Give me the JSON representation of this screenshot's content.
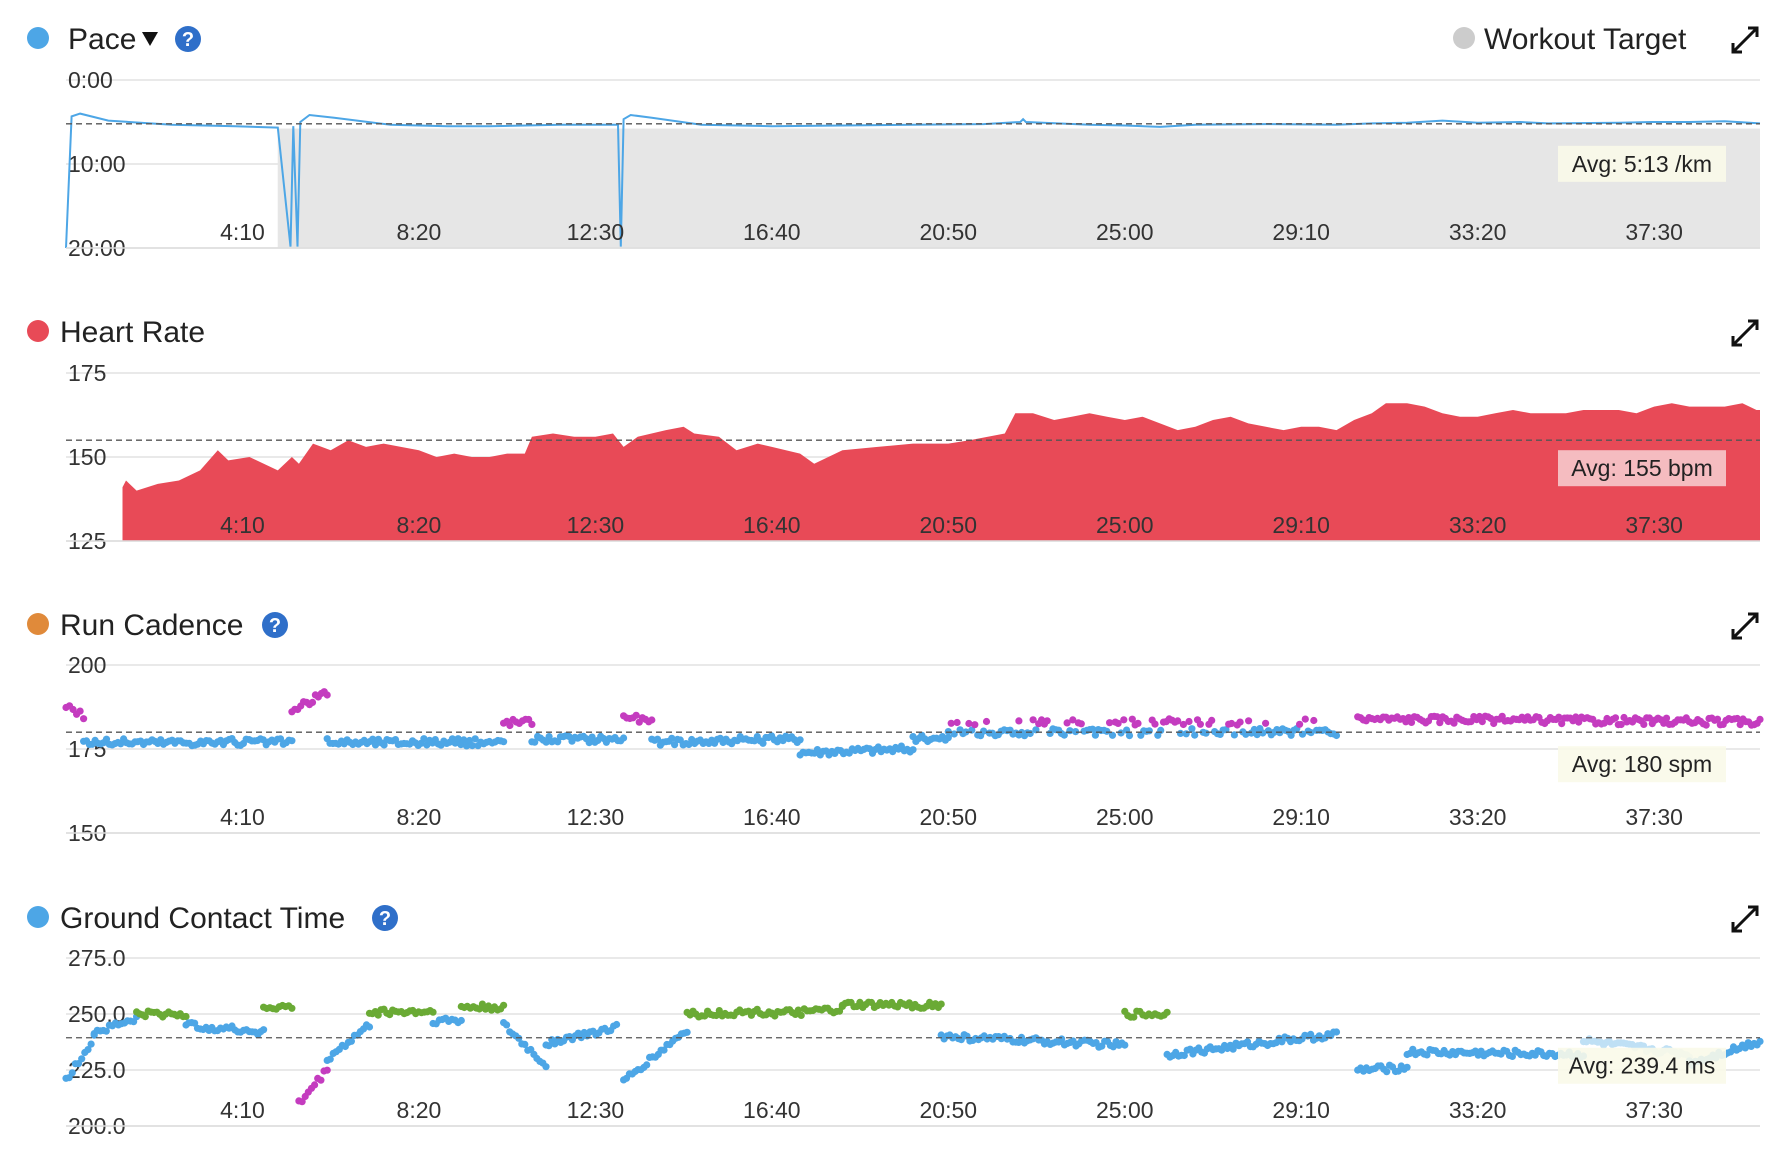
{
  "colors": {
    "pace": "#4da6e6",
    "heart_rate": "#e84a57",
    "cadence_dot": "#e08a3a",
    "cadence_blue": "#4da6e6",
    "cadence_purple": "#c43cbf",
    "gct": "#4da6e6",
    "gct_green": "#6aaa35",
    "gct_purple": "#c43cbf",
    "gct_light": "#bfe0f5",
    "target_gray": "#cccccc",
    "help_blue": "#2f6fc9",
    "hr_avg_bg": "#f6c9cc",
    "avg_bg": "#fafae9"
  },
  "icons": {
    "help": "question-circle-icon",
    "expand": "expand-arrows-icon",
    "dropdown": "caret-down-icon"
  },
  "chart_data": [
    {
      "id": "pace",
      "type": "line",
      "title": "Pace",
      "legend": "Workout Target",
      "legend_placement": "top-right",
      "x_ticks": [
        "4:10",
        "8:20",
        "12:30",
        "16:40",
        "20:50",
        "25:00",
        "29:10",
        "33:20",
        "37:30"
      ],
      "x_tick_seconds": [
        250,
        500,
        750,
        1000,
        1250,
        1500,
        1750,
        2000,
        2250
      ],
      "xlim": [
        0,
        2400
      ],
      "y_ticks": [
        "0:00",
        "10:00",
        "20:00"
      ],
      "y_tick_values": [
        0,
        600,
        1200
      ],
      "ylim": [
        0,
        1200
      ],
      "y_inverted": true,
      "grid": true,
      "avg_value": 313,
      "avg_label": "Avg: 5:13 /km",
      "target_band": {
        "x_start": 300,
        "x_end": 2400,
        "y_start": 347,
        "y_end": 1200
      },
      "points": [
        [
          0,
          1200
        ],
        [
          8,
          260
        ],
        [
          20,
          240
        ],
        [
          60,
          290
        ],
        [
          150,
          320
        ],
        [
          240,
          330
        ],
        [
          300,
          340
        ],
        [
          318,
          1190
        ],
        [
          322,
          330
        ],
        [
          328,
          1190
        ],
        [
          332,
          300
        ],
        [
          345,
          250
        ],
        [
          380,
          270
        ],
        [
          460,
          320
        ],
        [
          540,
          330
        ],
        [
          600,
          330
        ],
        [
          700,
          320
        ],
        [
          782,
          320
        ],
        [
          786,
          1190
        ],
        [
          790,
          280
        ],
        [
          800,
          250
        ],
        [
          830,
          270
        ],
        [
          900,
          320
        ],
        [
          1000,
          330
        ],
        [
          1100,
          325
        ],
        [
          1200,
          320
        ],
        [
          1300,
          315
        ],
        [
          1352,
          300
        ],
        [
          1356,
          280
        ],
        [
          1360,
          300
        ],
        [
          1450,
          320
        ],
        [
          1500,
          325
        ],
        [
          1550,
          335
        ],
        [
          1600,
          320
        ],
        [
          1700,
          315
        ],
        [
          1800,
          320
        ],
        [
          1850,
          310
        ],
        [
          1900,
          305
        ],
        [
          1950,
          290
        ],
        [
          2000,
          305
        ],
        [
          2060,
          300
        ],
        [
          2100,
          310
        ],
        [
          2200,
          305
        ],
        [
          2250,
          300
        ],
        [
          2300,
          300
        ],
        [
          2350,
          295
        ],
        [
          2400,
          310
        ]
      ]
    },
    {
      "id": "heart_rate",
      "type": "area",
      "title": "Heart Rate",
      "x_ticks": [
        "4:10",
        "8:20",
        "12:30",
        "16:40",
        "20:50",
        "25:00",
        "29:10",
        "33:20",
        "37:30"
      ],
      "x_tick_seconds": [
        250,
        500,
        750,
        1000,
        1250,
        1500,
        1750,
        2000,
        2250
      ],
      "xlim": [
        0,
        2400
      ],
      "y_ticks": [
        "175",
        "150",
        "125"
      ],
      "y_tick_values": [
        175,
        150,
        125
      ],
      "ylim": [
        125,
        175
      ],
      "grid": true,
      "avg_value": 155,
      "avg_label": "Avg: 155 bpm",
      "points": [
        [
          80,
          125
        ],
        [
          80,
          141
        ],
        [
          85,
          143
        ],
        [
          100,
          140
        ],
        [
          130,
          142
        ],
        [
          160,
          143
        ],
        [
          190,
          146
        ],
        [
          215,
          152
        ],
        [
          230,
          149
        ],
        [
          260,
          150
        ],
        [
          300,
          146
        ],
        [
          320,
          150
        ],
        [
          330,
          148
        ],
        [
          350,
          154
        ],
        [
          375,
          152
        ],
        [
          400,
          155
        ],
        [
          425,
          153
        ],
        [
          450,
          154
        ],
        [
          500,
          152
        ],
        [
          525,
          150
        ],
        [
          550,
          151
        ],
        [
          575,
          150
        ],
        [
          600,
          150
        ],
        [
          625,
          151
        ],
        [
          650,
          151
        ],
        [
          660,
          156
        ],
        [
          690,
          157
        ],
        [
          720,
          156
        ],
        [
          750,
          156
        ],
        [
          775,
          157
        ],
        [
          790,
          153
        ],
        [
          810,
          156
        ],
        [
          850,
          158
        ],
        [
          875,
          159
        ],
        [
          890,
          157
        ],
        [
          925,
          156
        ],
        [
          950,
          152
        ],
        [
          980,
          154
        ],
        [
          1000,
          153
        ],
        [
          1020,
          152
        ],
        [
          1040,
          151
        ],
        [
          1060,
          148
        ],
        [
          1080,
          150
        ],
        [
          1100,
          152
        ],
        [
          1150,
          153
        ],
        [
          1200,
          154
        ],
        [
          1250,
          154
        ],
        [
          1280,
          155
        ],
        [
          1330,
          157
        ],
        [
          1345,
          163
        ],
        [
          1370,
          163
        ],
        [
          1400,
          161
        ],
        [
          1425,
          162
        ],
        [
          1450,
          163
        ],
        [
          1475,
          162
        ],
        [
          1500,
          161
        ],
        [
          1525,
          162
        ],
        [
          1550,
          160
        ],
        [
          1575,
          158
        ],
        [
          1600,
          159
        ],
        [
          1625,
          161
        ],
        [
          1650,
          162
        ],
        [
          1675,
          160
        ],
        [
          1700,
          159
        ],
        [
          1725,
          158
        ],
        [
          1750,
          159
        ],
        [
          1775,
          159
        ],
        [
          1800,
          158
        ],
        [
          1825,
          161
        ],
        [
          1850,
          163
        ],
        [
          1870,
          166
        ],
        [
          1900,
          166
        ],
        [
          1925,
          165
        ],
        [
          1950,
          163
        ],
        [
          1975,
          162
        ],
        [
          2000,
          162
        ],
        [
          2025,
          163
        ],
        [
          2050,
          164
        ],
        [
          2075,
          163
        ],
        [
          2100,
          163
        ],
        [
          2125,
          163
        ],
        [
          2150,
          164
        ],
        [
          2175,
          164
        ],
        [
          2200,
          164
        ],
        [
          2225,
          163
        ],
        [
          2250,
          165
        ],
        [
          2275,
          166
        ],
        [
          2300,
          165
        ],
        [
          2325,
          165
        ],
        [
          2350,
          165
        ],
        [
          2375,
          166
        ],
        [
          2395,
          164
        ],
        [
          2400,
          164
        ],
        [
          2400,
          125
        ]
      ]
    },
    {
      "id": "cadence",
      "type": "scatter",
      "title": "Run Cadence",
      "x_ticks": [
        "4:10",
        "8:20",
        "12:30",
        "16:40",
        "20:50",
        "25:00",
        "29:10",
        "33:20",
        "37:30"
      ],
      "x_tick_seconds": [
        250,
        500,
        750,
        1000,
        1250,
        1500,
        1750,
        2000,
        2250
      ],
      "xlim": [
        0,
        2400
      ],
      "y_ticks": [
        "200",
        "175",
        "150"
      ],
      "y_tick_values": [
        200,
        175,
        150
      ],
      "ylim": [
        150,
        200
      ],
      "grid": true,
      "avg_value": 180,
      "avg_label": "Avg: 180 spm",
      "segments": [
        {
          "x0": 0,
          "x1": 25,
          "y0": 188,
          "y1": 185,
          "band": "purple"
        },
        {
          "x0": 25,
          "x1": 320,
          "y0": 177,
          "y1": 177,
          "band": "blue"
        },
        {
          "x0": 320,
          "x1": 370,
          "y0": 186,
          "y1": 192,
          "band": "purple"
        },
        {
          "x0": 370,
          "x1": 620,
          "y0": 177,
          "y1": 177,
          "band": "blue"
        },
        {
          "x0": 620,
          "x1": 660,
          "y0": 183,
          "y1": 183,
          "band": "purple"
        },
        {
          "x0": 660,
          "x1": 790,
          "y0": 178,
          "y1": 178,
          "band": "blue"
        },
        {
          "x0": 790,
          "x1": 830,
          "y0": 185,
          "y1": 183,
          "band": "purple"
        },
        {
          "x0": 830,
          "x1": 1040,
          "y0": 177,
          "y1": 178,
          "band": "blue"
        },
        {
          "x0": 1040,
          "x1": 1200,
          "y0": 174,
          "y1": 175,
          "band": "blue"
        },
        {
          "x0": 1200,
          "x1": 1250,
          "y0": 178,
          "y1": 178,
          "band": "blue"
        },
        {
          "x0": 1250,
          "x1": 1350,
          "y0": 180,
          "y1": 180,
          "band": "mixed"
        },
        {
          "x0": 1350,
          "x1": 1800,
          "y0": 180,
          "y1": 180,
          "band": "mixed"
        },
        {
          "x0": 1830,
          "x1": 2400,
          "y0": 184,
          "y1": 183,
          "band": "purple"
        }
      ]
    },
    {
      "id": "gct",
      "type": "scatter",
      "title": "Ground Contact Time",
      "x_ticks": [
        "4:10",
        "8:20",
        "12:30",
        "16:40",
        "20:50",
        "25:00",
        "29:10",
        "33:20",
        "37:30"
      ],
      "x_tick_seconds": [
        250,
        500,
        750,
        1000,
        1250,
        1500,
        1750,
        2000,
        2250
      ],
      "xlim": [
        0,
        2400
      ],
      "y_ticks": [
        "275.0",
        "250.0",
        "225.0",
        "200.0"
      ],
      "y_tick_values": [
        275,
        250,
        225,
        200
      ],
      "ylim": [
        200,
        275
      ],
      "grid": true,
      "avg_value": 239.4,
      "avg_label": "Avg: 239.4 ms",
      "segments": [
        {
          "x0": 0,
          "x1": 40,
          "y0": 220,
          "y1": 240,
          "band": "blue"
        },
        {
          "x0": 40,
          "x1": 100,
          "y0": 242,
          "y1": 248,
          "band": "blue"
        },
        {
          "x0": 100,
          "x1": 170,
          "y0": 250,
          "y1": 250,
          "band": "green"
        },
        {
          "x0": 170,
          "x1": 280,
          "y0": 245,
          "y1": 242,
          "band": "blue"
        },
        {
          "x0": 280,
          "x1": 320,
          "y0": 253,
          "y1": 253,
          "band": "green"
        },
        {
          "x0": 330,
          "x1": 370,
          "y0": 210,
          "y1": 225,
          "band": "purple"
        },
        {
          "x0": 370,
          "x1": 430,
          "y0": 230,
          "y1": 245,
          "band": "blue"
        },
        {
          "x0": 430,
          "x1": 520,
          "y0": 251,
          "y1": 251,
          "band": "green"
        },
        {
          "x0": 520,
          "x1": 560,
          "y0": 247,
          "y1": 247,
          "band": "blue"
        },
        {
          "x0": 560,
          "x1": 620,
          "y0": 253,
          "y1": 253,
          "band": "green"
        },
        {
          "x0": 620,
          "x1": 680,
          "y0": 245,
          "y1": 227,
          "band": "blue"
        },
        {
          "x0": 680,
          "x1": 780,
          "y0": 237,
          "y1": 244,
          "band": "blue"
        },
        {
          "x0": 790,
          "x1": 880,
          "y0": 220,
          "y1": 243,
          "band": "blue"
        },
        {
          "x0": 880,
          "x1": 1000,
          "y0": 250,
          "y1": 251,
          "band": "green"
        },
        {
          "x0": 1000,
          "x1": 1100,
          "y0": 250,
          "y1": 252,
          "band": "green"
        },
        {
          "x0": 1100,
          "x1": 1240,
          "y0": 254,
          "y1": 254,
          "band": "green"
        },
        {
          "x0": 1240,
          "x1": 1500,
          "y0": 240,
          "y1": 236,
          "band": "blue"
        },
        {
          "x0": 1500,
          "x1": 1560,
          "y0": 250,
          "y1": 250,
          "band": "green"
        },
        {
          "x0": 1560,
          "x1": 1800,
          "y0": 232,
          "y1": 241,
          "band": "blue"
        },
        {
          "x0": 1830,
          "x1": 1900,
          "y0": 225,
          "y1": 226,
          "band": "blue"
        },
        {
          "x0": 1900,
          "x1": 2150,
          "y0": 233,
          "y1": 232,
          "band": "blue"
        },
        {
          "x0": 2150,
          "x1": 2300,
          "y0": 238,
          "y1": 232,
          "band": "light"
        },
        {
          "x0": 2300,
          "x1": 2400,
          "y0": 228,
          "y1": 238,
          "band": "blue"
        }
      ]
    }
  ]
}
